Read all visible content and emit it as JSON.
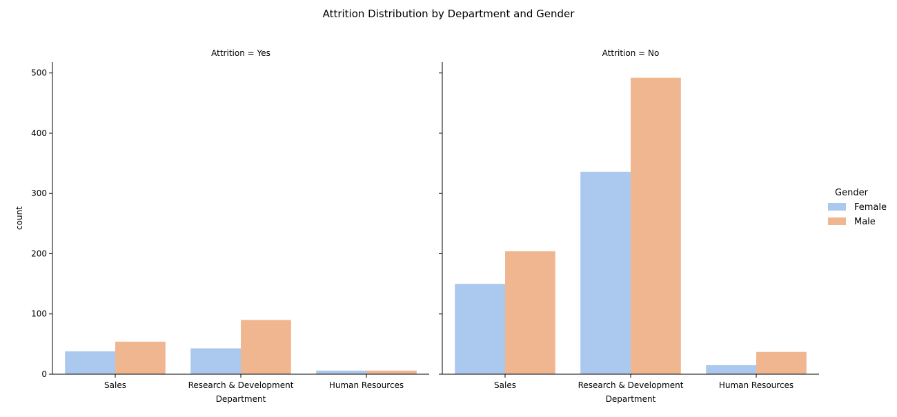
{
  "chart_data": {
    "type": "bar",
    "title": "Attrition Distribution by Department and Gender",
    "categories": [
      "Sales",
      "Research & Development",
      "Human Resources"
    ],
    "xlabel": "Department",
    "ylabel": "count",
    "ylim": [
      0,
      518
    ],
    "yticks": [
      0,
      100,
      200,
      300,
      400,
      500
    ],
    "grid": false,
    "legend": {
      "title": "Gender",
      "placement": "right",
      "entries": [
        "Female",
        "Male"
      ]
    },
    "colors": {
      "Female": "#abc9ee",
      "Male": "#f0b690"
    },
    "facets": [
      {
        "title": "Attrition = Yes",
        "series": [
          {
            "name": "Female",
            "values": [
              38,
              43,
              6
            ]
          },
          {
            "name": "Male",
            "values": [
              54,
              90,
              6
            ]
          }
        ]
      },
      {
        "title": "Attrition = No",
        "series": [
          {
            "name": "Female",
            "values": [
              150,
              336,
              15
            ]
          },
          {
            "name": "Male",
            "values": [
              204,
              492,
              37
            ]
          }
        ]
      }
    ]
  }
}
